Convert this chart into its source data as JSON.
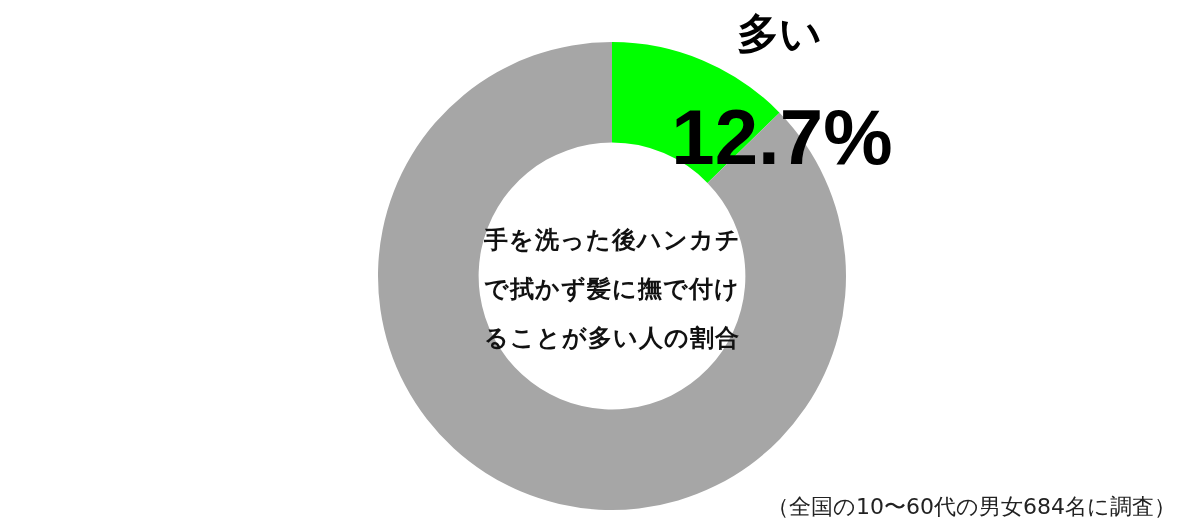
{
  "chart_data": {
    "type": "donut",
    "title": "手を洗った後ハンカチで拭かず髪に撫で付けることが多い人の割合",
    "categories": [
      "多い",
      null
    ],
    "values": [
      12.7,
      87.3
    ],
    "value_labels": [
      "12.7%",
      null
    ],
    "colors": [
      "#00ff00",
      "#a6a6a6"
    ],
    "annotations": [
      "（全国の10〜60代の男女684名に調査）"
    ]
  }
}
